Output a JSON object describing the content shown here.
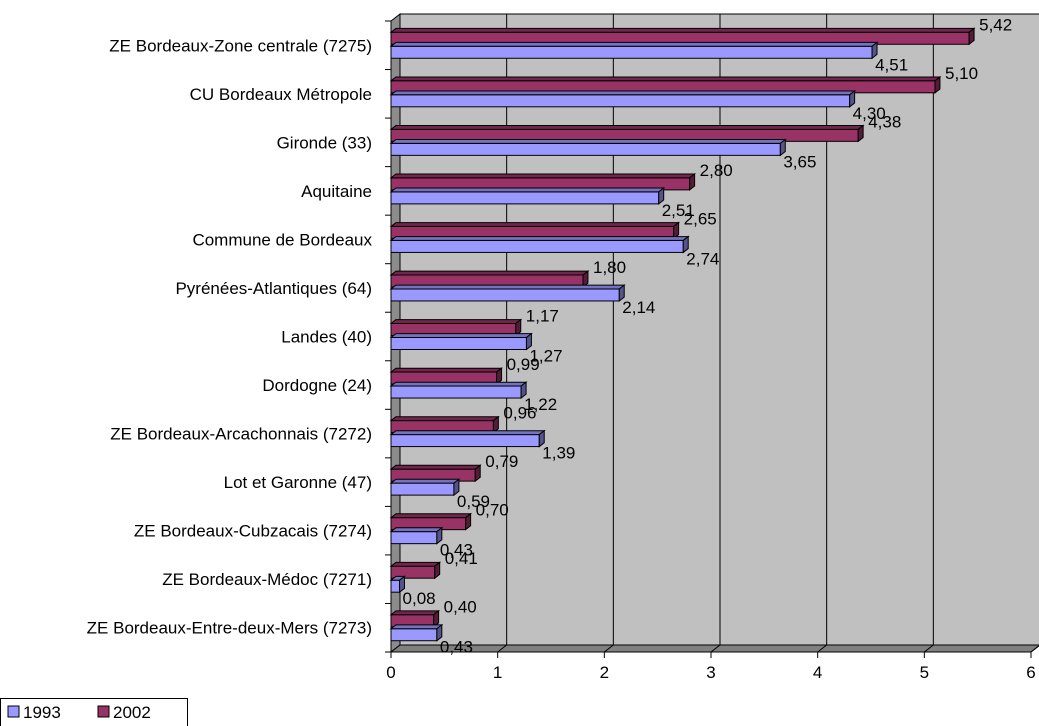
{
  "chart_data": {
    "type": "bar",
    "orientation": "horizontal",
    "style": "3d",
    "categories": [
      "ZE Bordeaux-Zone centrale  (7275)",
      "CU Bordeaux Métropole",
      "Gironde (33)",
      "Aquitaine",
      "Commune de Bordeaux",
      "Pyrénées-Atlantiques (64)",
      "Landes (40)",
      "Dordogne (24)",
      "ZE Bordeaux-Arcachonnais (7272)",
      "Lot et Garonne (47)",
      "ZE Bordeaux-Cubzacais (7274)",
      "ZE Bordeaux-Médoc (7271)",
      "ZE Bordeaux-Entre-deux-Mers (7273)"
    ],
    "series": [
      {
        "name": "1993",
        "color": "#9999ff",
        "values": [
          4.51,
          4.3,
          3.65,
          2.51,
          2.74,
          2.14,
          1.27,
          1.22,
          1.39,
          0.59,
          0.43,
          0.08,
          0.43
        ],
        "labels": [
          "4,51",
          "4,30",
          "3,65",
          "2,51",
          "2,74",
          "2,14",
          "1,27",
          "1,22",
          "1,39",
          "0,59",
          "0,43",
          "0,08",
          "0,43"
        ]
      },
      {
        "name": "2002",
        "color": "#993366",
        "values": [
          5.42,
          5.1,
          4.38,
          2.8,
          2.65,
          1.8,
          1.17,
          0.99,
          0.96,
          0.79,
          0.7,
          0.41,
          0.4
        ],
        "labels": [
          "5,42",
          "5,10",
          "4,38",
          "2,80",
          "2,65",
          "1,80",
          "1,17",
          "0,99",
          "0,96",
          "0,79",
          "0,70",
          "0,41",
          "0,40"
        ]
      }
    ],
    "x_ticks": [
      "0",
      "1",
      "2",
      "3",
      "4",
      "5",
      "6"
    ],
    "xlim": [
      0,
      6
    ],
    "grid": true,
    "legend_position": "bottom-left",
    "plot_background": "#c0c0c0"
  }
}
